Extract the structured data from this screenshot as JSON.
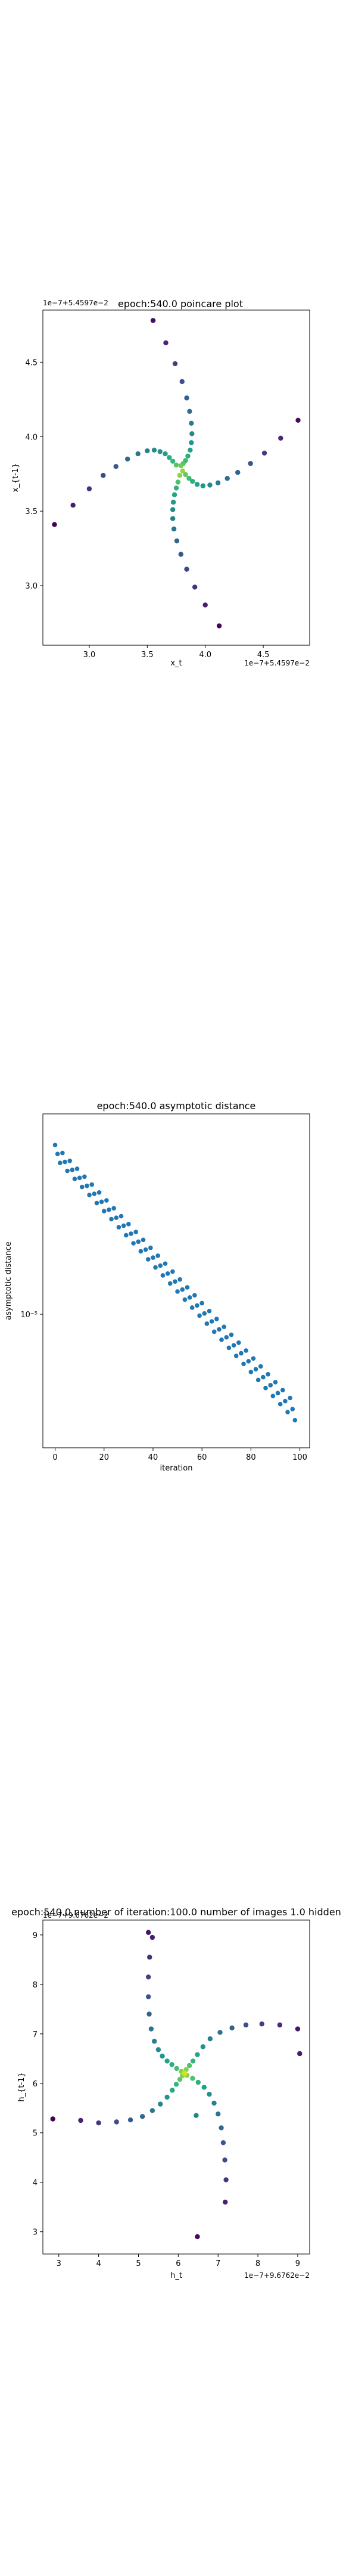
{
  "chart_data": [
    {
      "type": "scatter",
      "title": "epoch:540.0 poincare plot",
      "xlabel": "x_t",
      "ylabel": "x_{t-1}",
      "x_offset_text": "1e−7+5.4597e−2",
      "y_offset_text": "1e−7+5.4597e−2",
      "xlim": [
        2.6,
        4.9
      ],
      "ylim": [
        2.6,
        4.85
      ],
      "xticks": [
        3.0,
        3.5,
        4.0,
        4.5
      ],
      "yticks": [
        3.0,
        3.5,
        4.0,
        4.5
      ],
      "xtick_labels": [
        "3.0",
        "3.5",
        "4.0",
        "4.5"
      ],
      "ytick_labels": [
        "3.0",
        "3.5",
        "4.0",
        "4.5"
      ],
      "grid": false,
      "colormap": "viridis",
      "points": [
        {
          "x": 3.55,
          "y": 4.78
        },
        {
          "x": 3.66,
          "y": 4.63
        },
        {
          "x": 3.74,
          "y": 4.49
        },
        {
          "x": 3.8,
          "y": 4.37
        },
        {
          "x": 3.84,
          "y": 4.26
        },
        {
          "x": 3.865,
          "y": 4.17
        },
        {
          "x": 3.88,
          "y": 4.09
        },
        {
          "x": 3.885,
          "y": 4.02
        },
        {
          "x": 3.88,
          "y": 3.96
        },
        {
          "x": 3.87,
          "y": 3.91
        },
        {
          "x": 3.85,
          "y": 3.87
        },
        {
          "x": 3.83,
          "y": 3.84
        },
        {
          "x": 3.81,
          "y": 3.82
        },
        {
          "x": 3.79,
          "y": 3.805
        },
        {
          "x": 4.8,
          "y": 4.11
        },
        {
          "x": 4.65,
          "y": 3.99
        },
        {
          "x": 4.51,
          "y": 3.89
        },
        {
          "x": 4.39,
          "y": 3.82
        },
        {
          "x": 4.28,
          "y": 3.76
        },
        {
          "x": 4.19,
          "y": 3.72
        },
        {
          "x": 4.11,
          "y": 3.69
        },
        {
          "x": 4.04,
          "y": 3.675
        },
        {
          "x": 3.98,
          "y": 3.67
        },
        {
          "x": 3.93,
          "y": 3.68
        },
        {
          "x": 3.89,
          "y": 3.7
        },
        {
          "x": 3.86,
          "y": 3.72
        },
        {
          "x": 3.83,
          "y": 3.745
        },
        {
          "x": 3.805,
          "y": 3.77
        },
        {
          "x": 4.12,
          "y": 2.73
        },
        {
          "x": 4.0,
          "y": 2.87
        },
        {
          "x": 3.91,
          "y": 2.99
        },
        {
          "x": 3.84,
          "y": 3.11
        },
        {
          "x": 3.79,
          "y": 3.21
        },
        {
          "x": 3.755,
          "y": 3.3
        },
        {
          "x": 3.73,
          "y": 3.38
        },
        {
          "x": 3.72,
          "y": 3.45
        },
        {
          "x": 3.72,
          "y": 3.51
        },
        {
          "x": 3.725,
          "y": 3.56
        },
        {
          "x": 3.735,
          "y": 3.61
        },
        {
          "x": 3.75,
          "y": 3.655
        },
        {
          "x": 3.765,
          "y": 3.695
        },
        {
          "x": 3.78,
          "y": 3.74
        },
        {
          "x": 2.7,
          "y": 3.41
        },
        {
          "x": 2.86,
          "y": 3.54
        },
        {
          "x": 3.0,
          "y": 3.65
        },
        {
          "x": 3.12,
          "y": 3.74
        },
        {
          "x": 3.23,
          "y": 3.8
        },
        {
          "x": 3.33,
          "y": 3.85
        },
        {
          "x": 3.42,
          "y": 3.885
        },
        {
          "x": 3.5,
          "y": 3.905
        },
        {
          "x": 3.56,
          "y": 3.91
        },
        {
          "x": 3.61,
          "y": 3.9
        },
        {
          "x": 3.655,
          "y": 3.885
        },
        {
          "x": 3.69,
          "y": 3.86
        },
        {
          "x": 3.72,
          "y": 3.835
        },
        {
          "x": 3.75,
          "y": 3.81
        }
      ]
    },
    {
      "type": "scatter",
      "title": "epoch:540.0 asymptotic distance",
      "xlabel": "iteration",
      "ylabel": "asymptotic distance",
      "xlim": [
        -5,
        104
      ],
      "ylim_log": [
        -5.3,
        -4.55
      ],
      "yscale": "log",
      "xticks": [
        0,
        20,
        40,
        60,
        80,
        100
      ],
      "xtick_labels": [
        "0",
        "20",
        "40",
        "60",
        "80",
        "100"
      ],
      "yticks": [
        -5
      ],
      "ytick_labels": [
        "10⁻⁵"
      ],
      "grid": false,
      "color": "#1f77b4",
      "series": [
        {
          "x_start": 0,
          "x_end": 98,
          "x_step": 3,
          "logy_start": -4.62,
          "logy_end": -5.2
        },
        {
          "x_start": 1,
          "x_end": 99,
          "x_step": 3,
          "logy_start": -4.64,
          "logy_end": -5.225
        },
        {
          "x_start": 2,
          "x_end": 100,
          "x_step": 3,
          "logy_start": -4.66,
          "logy_end": -5.25
        }
      ]
    },
    {
      "type": "scatter",
      "title": "epoch:540.0,number of iteration:100.0  number of images 1.0 hidden",
      "xlabel": "h_t",
      "ylabel": "h_{t-1}",
      "x_offset_text": "1e−7+9.6762e−2",
      "y_offset_text": "1e−7+9.6762e−2",
      "xlim": [
        2.6,
        9.3
      ],
      "ylim": [
        2.55,
        9.3
      ],
      "xticks": [
        3,
        4,
        5,
        6,
        7,
        8,
        9
      ],
      "yticks": [
        3,
        4,
        5,
        6,
        7,
        8,
        9
      ],
      "xtick_labels": [
        "3",
        "4",
        "5",
        "6",
        "7",
        "8",
        "9"
      ],
      "ytick_labels": [
        "3",
        "4",
        "5",
        "6",
        "7",
        "8",
        "9"
      ],
      "grid": false,
      "colormap": "viridis",
      "points": [
        {
          "x": 5.25,
          "y": 9.05
        },
        {
          "x": 5.35,
          "y": 8.95
        },
        {
          "x": 5.28,
          "y": 8.55
        },
        {
          "x": 5.25,
          "y": 8.15
        },
        {
          "x": 5.25,
          "y": 7.75
        },
        {
          "x": 5.27,
          "y": 7.4
        },
        {
          "x": 5.32,
          "y": 7.1
        },
        {
          "x": 5.4,
          "y": 6.85
        },
        {
          "x": 5.5,
          "y": 6.68
        },
        {
          "x": 5.6,
          "y": 6.55
        },
        {
          "x": 5.72,
          "y": 6.45
        },
        {
          "x": 5.84,
          "y": 6.38
        },
        {
          "x": 5.96,
          "y": 6.3
        },
        {
          "x": 6.08,
          "y": 6.24
        },
        {
          "x": 9.05,
          "y": 6.6
        },
        {
          "x": 9.0,
          "y": 7.1
        },
        {
          "x": 8.55,
          "y": 7.18
        },
        {
          "x": 8.1,
          "y": 7.2
        },
        {
          "x": 7.7,
          "y": 7.18
        },
        {
          "x": 7.35,
          "y": 7.12
        },
        {
          "x": 7.05,
          "y": 7.03
        },
        {
          "x": 6.8,
          "y": 6.9
        },
        {
          "x": 6.62,
          "y": 6.74
        },
        {
          "x": 6.48,
          "y": 6.58
        },
        {
          "x": 6.37,
          "y": 6.45
        },
        {
          "x": 6.28,
          "y": 6.36
        },
        {
          "x": 6.2,
          "y": 6.28
        },
        {
          "x": 6.14,
          "y": 6.22
        },
        {
          "x": 6.48,
          "y": 2.9
        },
        {
          "x": 7.18,
          "y": 3.6
        },
        {
          "x": 7.2,
          "y": 4.05
        },
        {
          "x": 7.17,
          "y": 4.45
        },
        {
          "x": 7.13,
          "y": 4.8
        },
        {
          "x": 7.08,
          "y": 5.1
        },
        {
          "x": 7.0,
          "y": 5.38
        },
        {
          "x": 6.45,
          "y": 5.35
        },
        {
          "x": 6.9,
          "y": 5.6
        },
        {
          "x": 6.78,
          "y": 5.78
        },
        {
          "x": 6.65,
          "y": 5.92
        },
        {
          "x": 6.5,
          "y": 6.02
        },
        {
          "x": 6.36,
          "y": 6.1
        },
        {
          "x": 6.22,
          "y": 6.16
        },
        {
          "x": 2.85,
          "y": 5.28
        },
        {
          "x": 3.55,
          "y": 5.25
        },
        {
          "x": 4.0,
          "y": 5.2
        },
        {
          "x": 4.45,
          "y": 5.22
        },
        {
          "x": 4.8,
          "y": 5.26
        },
        {
          "x": 5.1,
          "y": 5.33
        },
        {
          "x": 5.35,
          "y": 5.45
        },
        {
          "x": 5.55,
          "y": 5.58
        },
        {
          "x": 5.72,
          "y": 5.72
        },
        {
          "x": 5.85,
          "y": 5.86
        },
        {
          "x": 5.95,
          "y": 5.98
        },
        {
          "x": 6.04,
          "y": 6.08
        },
        {
          "x": 6.1,
          "y": 6.15
        },
        {
          "x": 6.16,
          "y": 6.2
        }
      ]
    }
  ]
}
